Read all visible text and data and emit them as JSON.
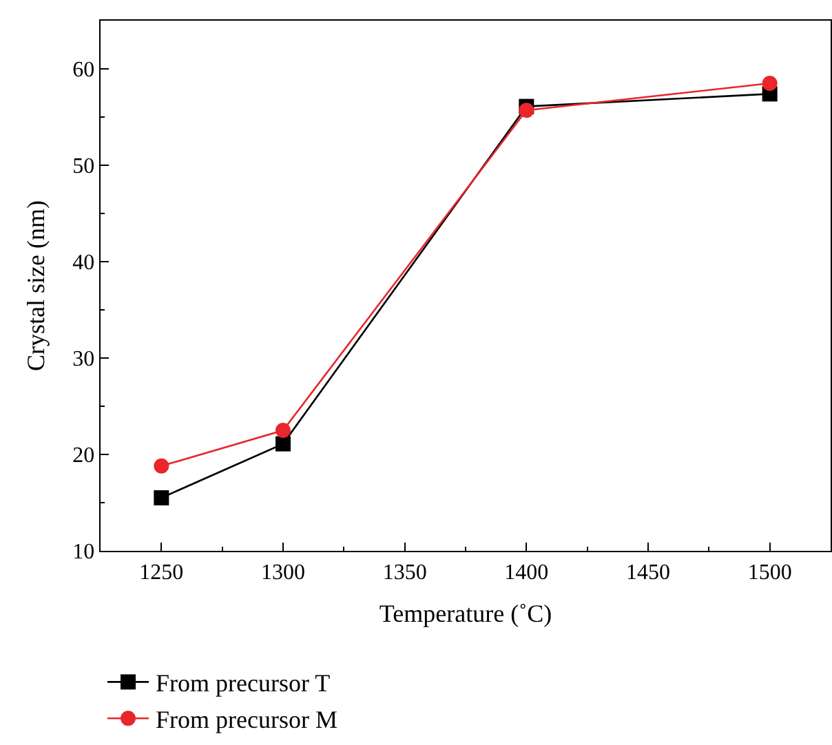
{
  "chart_data": {
    "type": "line",
    "xlabel": "Temperature (˚C)",
    "ylabel": "Crystal size (nm)",
    "x": [
      1250,
      1300,
      1400,
      1500
    ],
    "series": [
      {
        "name": "From precursor T",
        "color": "#000000",
        "marker": "square",
        "values": [
          15.5,
          21.1,
          56.1,
          57.4
        ]
      },
      {
        "name": "From precursor M",
        "color": "#e8262b",
        "marker": "circle",
        "values": [
          18.8,
          22.5,
          55.7,
          58.5
        ]
      }
    ],
    "xlim": [
      1225,
      1525
    ],
    "xticks": [
      1250,
      1300,
      1350,
      1400,
      1450,
      1500
    ],
    "ylim": [
      10,
      65
    ],
    "yticks": [
      10,
      20,
      30,
      40,
      50,
      60
    ],
    "legend": "bottom left",
    "line_style": "solid"
  }
}
